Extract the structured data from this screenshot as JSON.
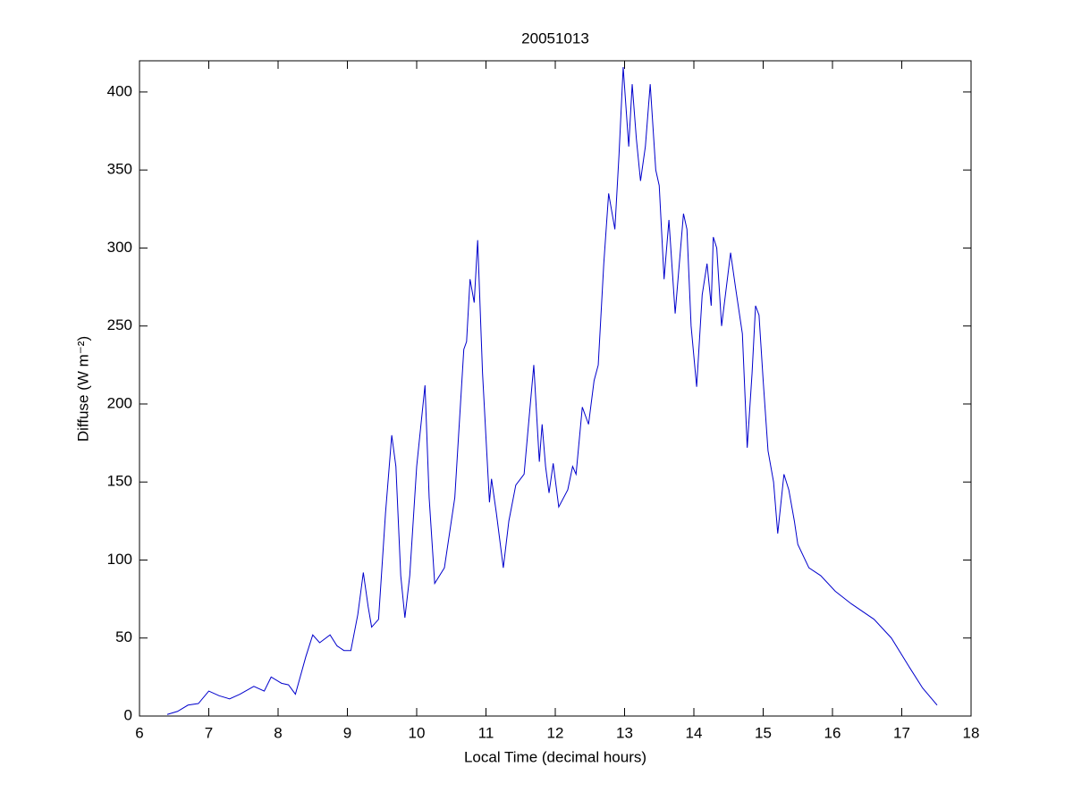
{
  "chart_data": {
    "type": "line",
    "title": "20051013",
    "xlabel": "Local Time (decimal hours)",
    "ylabel": "Diffuse (W m⁻²)",
    "xlim": [
      6,
      18
    ],
    "xticks": [
      6,
      7,
      8,
      9,
      10,
      11,
      12,
      13,
      14,
      15,
      16,
      17,
      18
    ],
    "ylim": [
      0,
      420
    ],
    "yticks": [
      0,
      50,
      100,
      150,
      200,
      250,
      300,
      350,
      400
    ],
    "grid": false,
    "series": [
      {
        "color": "#0000cc",
        "x": [
          6.4,
          6.55,
          6.7,
          6.85,
          7.0,
          7.15,
          7.3,
          7.45,
          7.65,
          7.8,
          7.9,
          8.05,
          8.15,
          8.25,
          8.4,
          8.5,
          8.6,
          8.75,
          8.85,
          8.95,
          9.05,
          9.15,
          9.23,
          9.3,
          9.35,
          9.45,
          9.55,
          9.64,
          9.7,
          9.77,
          9.83,
          9.9,
          10.0,
          10.12,
          10.18,
          10.26,
          10.4,
          10.55,
          10.68,
          10.72,
          10.77,
          10.83,
          10.88,
          10.95,
          11.05,
          11.08,
          11.15,
          11.25,
          11.33,
          11.43,
          11.55,
          11.62,
          11.69,
          11.77,
          11.81,
          11.86,
          11.91,
          11.97,
          12.05,
          12.18,
          12.25,
          12.3,
          12.39,
          12.48,
          12.56,
          12.62,
          12.7,
          12.77,
          12.86,
          12.92,
          12.98,
          13.06,
          13.11,
          13.17,
          13.23,
          13.3,
          13.37,
          13.45,
          13.5,
          13.57,
          13.64,
          13.73,
          13.85,
          13.9,
          13.96,
          14.04,
          14.12,
          14.19,
          14.25,
          14.28,
          14.33,
          14.4,
          14.53,
          14.6,
          14.7,
          14.77,
          14.84,
          14.89,
          14.94,
          15.0,
          15.07,
          15.15,
          15.21,
          15.3,
          15.37,
          15.45,
          15.5,
          15.66,
          15.83,
          16.04,
          16.27,
          16.6,
          16.85,
          17.1,
          17.3,
          17.51
        ],
        "values": [
          1,
          3,
          7,
          8,
          16,
          13,
          11,
          14,
          19,
          16,
          25,
          21,
          20,
          14,
          38,
          52,
          47,
          52,
          45,
          42,
          42,
          65,
          92,
          70,
          57,
          62,
          130,
          180,
          160,
          90,
          63,
          90,
          160,
          212,
          140,
          85,
          95,
          140,
          235,
          240,
          280,
          265,
          305,
          220,
          137,
          152,
          130,
          95,
          125,
          148,
          155,
          190,
          225,
          163,
          187,
          160,
          143,
          162,
          134,
          145,
          160,
          155,
          198,
          187,
          215,
          225,
          290,
          335,
          312,
          360,
          416,
          365,
          405,
          370,
          343,
          365,
          405,
          350,
          340,
          280,
          318,
          258,
          322,
          312,
          250,
          211,
          270,
          290,
          263,
          307,
          300,
          250,
          297,
          275,
          245,
          172,
          220,
          263,
          257,
          215,
          170,
          150,
          117,
          155,
          145,
          125,
          110,
          95,
          90,
          80,
          72,
          62,
          50,
          32,
          18,
          7
        ]
      }
    ]
  }
}
